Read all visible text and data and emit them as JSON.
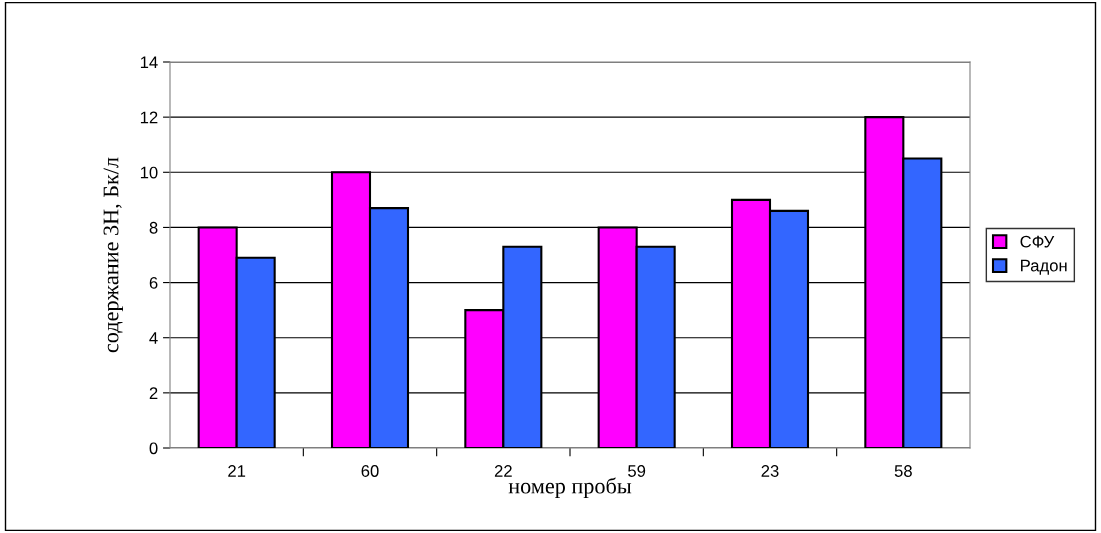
{
  "chart_data": {
    "type": "bar",
    "xlabel": "номер пробы",
    "ylabel": "содержание 3H, Бк/л",
    "categories": [
      "21",
      "60",
      "22",
      "59",
      "23",
      "58"
    ],
    "series": [
      {
        "name": "СФУ",
        "color": "#ff00ff",
        "values": [
          8,
          10,
          5,
          8,
          9,
          12
        ]
      },
      {
        "name": "Радон",
        "color": "#3366ff",
        "values": [
          6.9,
          8.7,
          7.3,
          7.3,
          8.6,
          10.5
        ]
      }
    ],
    "ylim": [
      0,
      14
    ],
    "yticks": [
      0,
      2,
      4,
      6,
      8,
      10,
      12,
      14
    ],
    "grid": "y",
    "legend": "right"
  }
}
